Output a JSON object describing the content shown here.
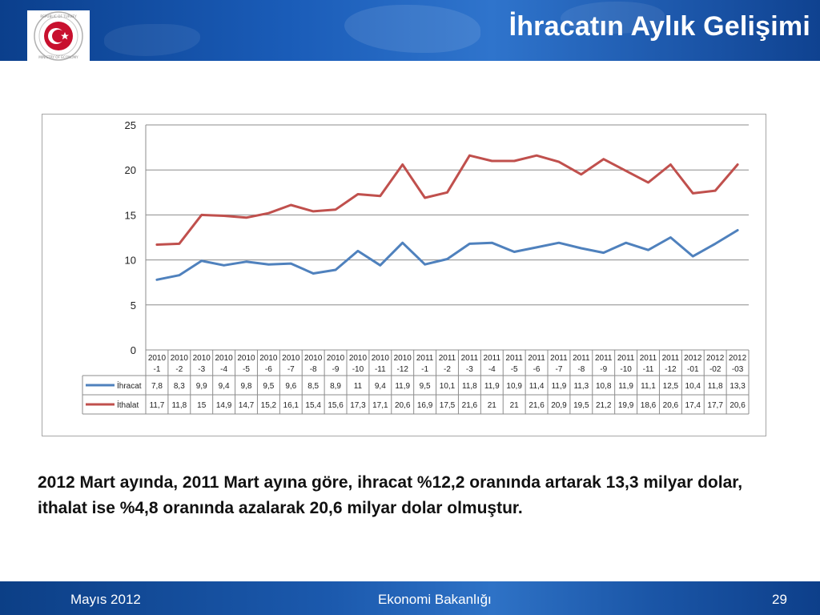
{
  "header": {
    "title": "İhracatın Aylık Gelişimi",
    "logo_ring_text_top": "REPUBLIC OF TURKEY",
    "logo_ring_text_bottom": "MINISTRY OF ECONOMY"
  },
  "chart_data": {
    "type": "line",
    "categories": [
      "2010-1",
      "2010-2",
      "2010-3",
      "2010-4",
      "2010-5",
      "2010-6",
      "2010-7",
      "2010-8",
      "2010-9",
      "2010-10",
      "2010-11",
      "2010-12",
      "2011-1",
      "2011-2",
      "2011-3",
      "2011-4",
      "2011-5",
      "2011-6",
      "2011-7",
      "2011-8",
      "2011-9",
      "2011-10",
      "2011-11",
      "2011-12",
      "2012-01",
      "2012-02",
      "2012-03"
    ],
    "category_labels": [
      [
        "2010",
        "-1"
      ],
      [
        "2010",
        "-2"
      ],
      [
        "2010",
        "-3"
      ],
      [
        "2010",
        "-4"
      ],
      [
        "2010",
        "-5"
      ],
      [
        "2010",
        "-6"
      ],
      [
        "2010",
        "-7"
      ],
      [
        "2010",
        "-8"
      ],
      [
        "2010",
        "-9"
      ],
      [
        "2010",
        "-10"
      ],
      [
        "2010",
        "-11"
      ],
      [
        "2010",
        "-12"
      ],
      [
        "2011",
        "-1"
      ],
      [
        "2011",
        "-2"
      ],
      [
        "2011",
        "-3"
      ],
      [
        "2011",
        "-4"
      ],
      [
        "2011",
        "-5"
      ],
      [
        "2011",
        "-6"
      ],
      [
        "2011",
        "-7"
      ],
      [
        "2011",
        "-8"
      ],
      [
        "2011",
        "-9"
      ],
      [
        "2011",
        "-10"
      ],
      [
        "2011",
        "-11"
      ],
      [
        "2011",
        "-12"
      ],
      [
        "2012",
        "-01"
      ],
      [
        "2012",
        "-02"
      ],
      [
        "2012",
        "-03"
      ]
    ],
    "series": [
      {
        "name": "İhracat",
        "color": "#4f81bd",
        "values": [
          7.8,
          8.3,
          9.9,
          9.4,
          9.8,
          9.5,
          9.6,
          8.5,
          8.9,
          11,
          9.4,
          11.9,
          9.5,
          10.1,
          11.8,
          11.9,
          10.9,
          11.4,
          11.9,
          11.3,
          10.8,
          11.9,
          11.1,
          12.5,
          10.4,
          11.8,
          13.3
        ],
        "labels": [
          "7,8",
          "8,3",
          "9,9",
          "9,4",
          "9,8",
          "9,5",
          "9,6",
          "8,5",
          "8,9",
          "11",
          "9,4",
          "11,9",
          "9,5",
          "10,1",
          "11,8",
          "11,9",
          "10,9",
          "11,4",
          "11,9",
          "11,3",
          "10,8",
          "11,9",
          "11,1",
          "12,5",
          "10,4",
          "11,8",
          "13,3"
        ]
      },
      {
        "name": "İthalat",
        "color": "#c0504d",
        "values": [
          11.7,
          11.8,
          15,
          14.9,
          14.7,
          15.2,
          16.1,
          15.4,
          15.6,
          17.3,
          17.1,
          20.6,
          16.9,
          17.5,
          21.6,
          21,
          21,
          21.6,
          20.9,
          19.5,
          21.2,
          19.9,
          18.6,
          20.6,
          17.4,
          17.7,
          20.6
        ],
        "labels": [
          "11,7",
          "11,8",
          "15",
          "14,9",
          "14,7",
          "15,2",
          "16,1",
          "15,4",
          "15,6",
          "17,3",
          "17,1",
          "20,6",
          "16,9",
          "17,5",
          "21,6",
          "21",
          "21",
          "21,6",
          "20,9",
          "19,5",
          "21,2",
          "19,9",
          "18,6",
          "20,6",
          "17,4",
          "17,7",
          "20,6"
        ]
      }
    ],
    "yticks": [
      "0",
      "5",
      "10",
      "15",
      "20",
      "25"
    ],
    "ylim": [
      0,
      25
    ],
    "grid": true,
    "legend": "data-table"
  },
  "summary_text": "2012 Mart ayında, 2011 Mart ayına göre, ihracat %12,2 oranında artarak 13,3 milyar dolar, ithalat ise %4,8 oranında azalarak 20,6 milyar dolar olmuştur.",
  "footer": {
    "date": "Mayıs 2012",
    "organization": "Ekonomi Bakanlığı",
    "page_number": "29"
  }
}
